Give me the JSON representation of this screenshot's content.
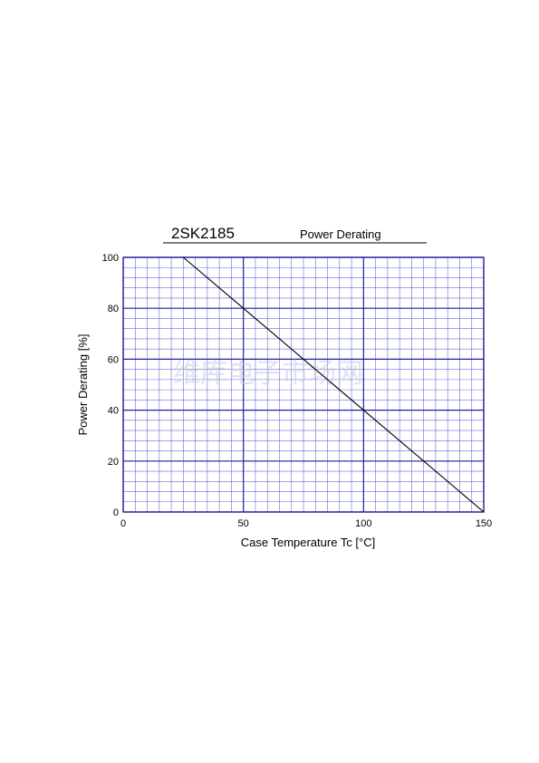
{
  "chart_data": {
    "type": "line",
    "part_number": "2SK2185",
    "title": "Power Derating",
    "xlabel": "Case Temperature  Tc  [°C]",
    "ylabel": "Power Derating  [%]",
    "xlim": [
      0,
      150
    ],
    "ylim": [
      0,
      100
    ],
    "x_ticks": [
      0,
      50,
      100,
      150
    ],
    "y_ticks": [
      0,
      20,
      40,
      60,
      80,
      100
    ],
    "x_tick_labels": [
      "0",
      "50",
      "100",
      "150"
    ],
    "y_tick_labels": [
      "0",
      "20",
      "40",
      "60",
      "80",
      "100"
    ],
    "grid": true,
    "series": [
      {
        "x": [
          25,
          150
        ],
        "y": [
          100,
          0
        ]
      }
    ],
    "watermark": "维库电子市场网",
    "colors": {
      "grid_major": "#1f1fa0",
      "grid_minor": "#6a6ad6",
      "line": "#000000",
      "watermark": "#c9cbe6"
    }
  }
}
